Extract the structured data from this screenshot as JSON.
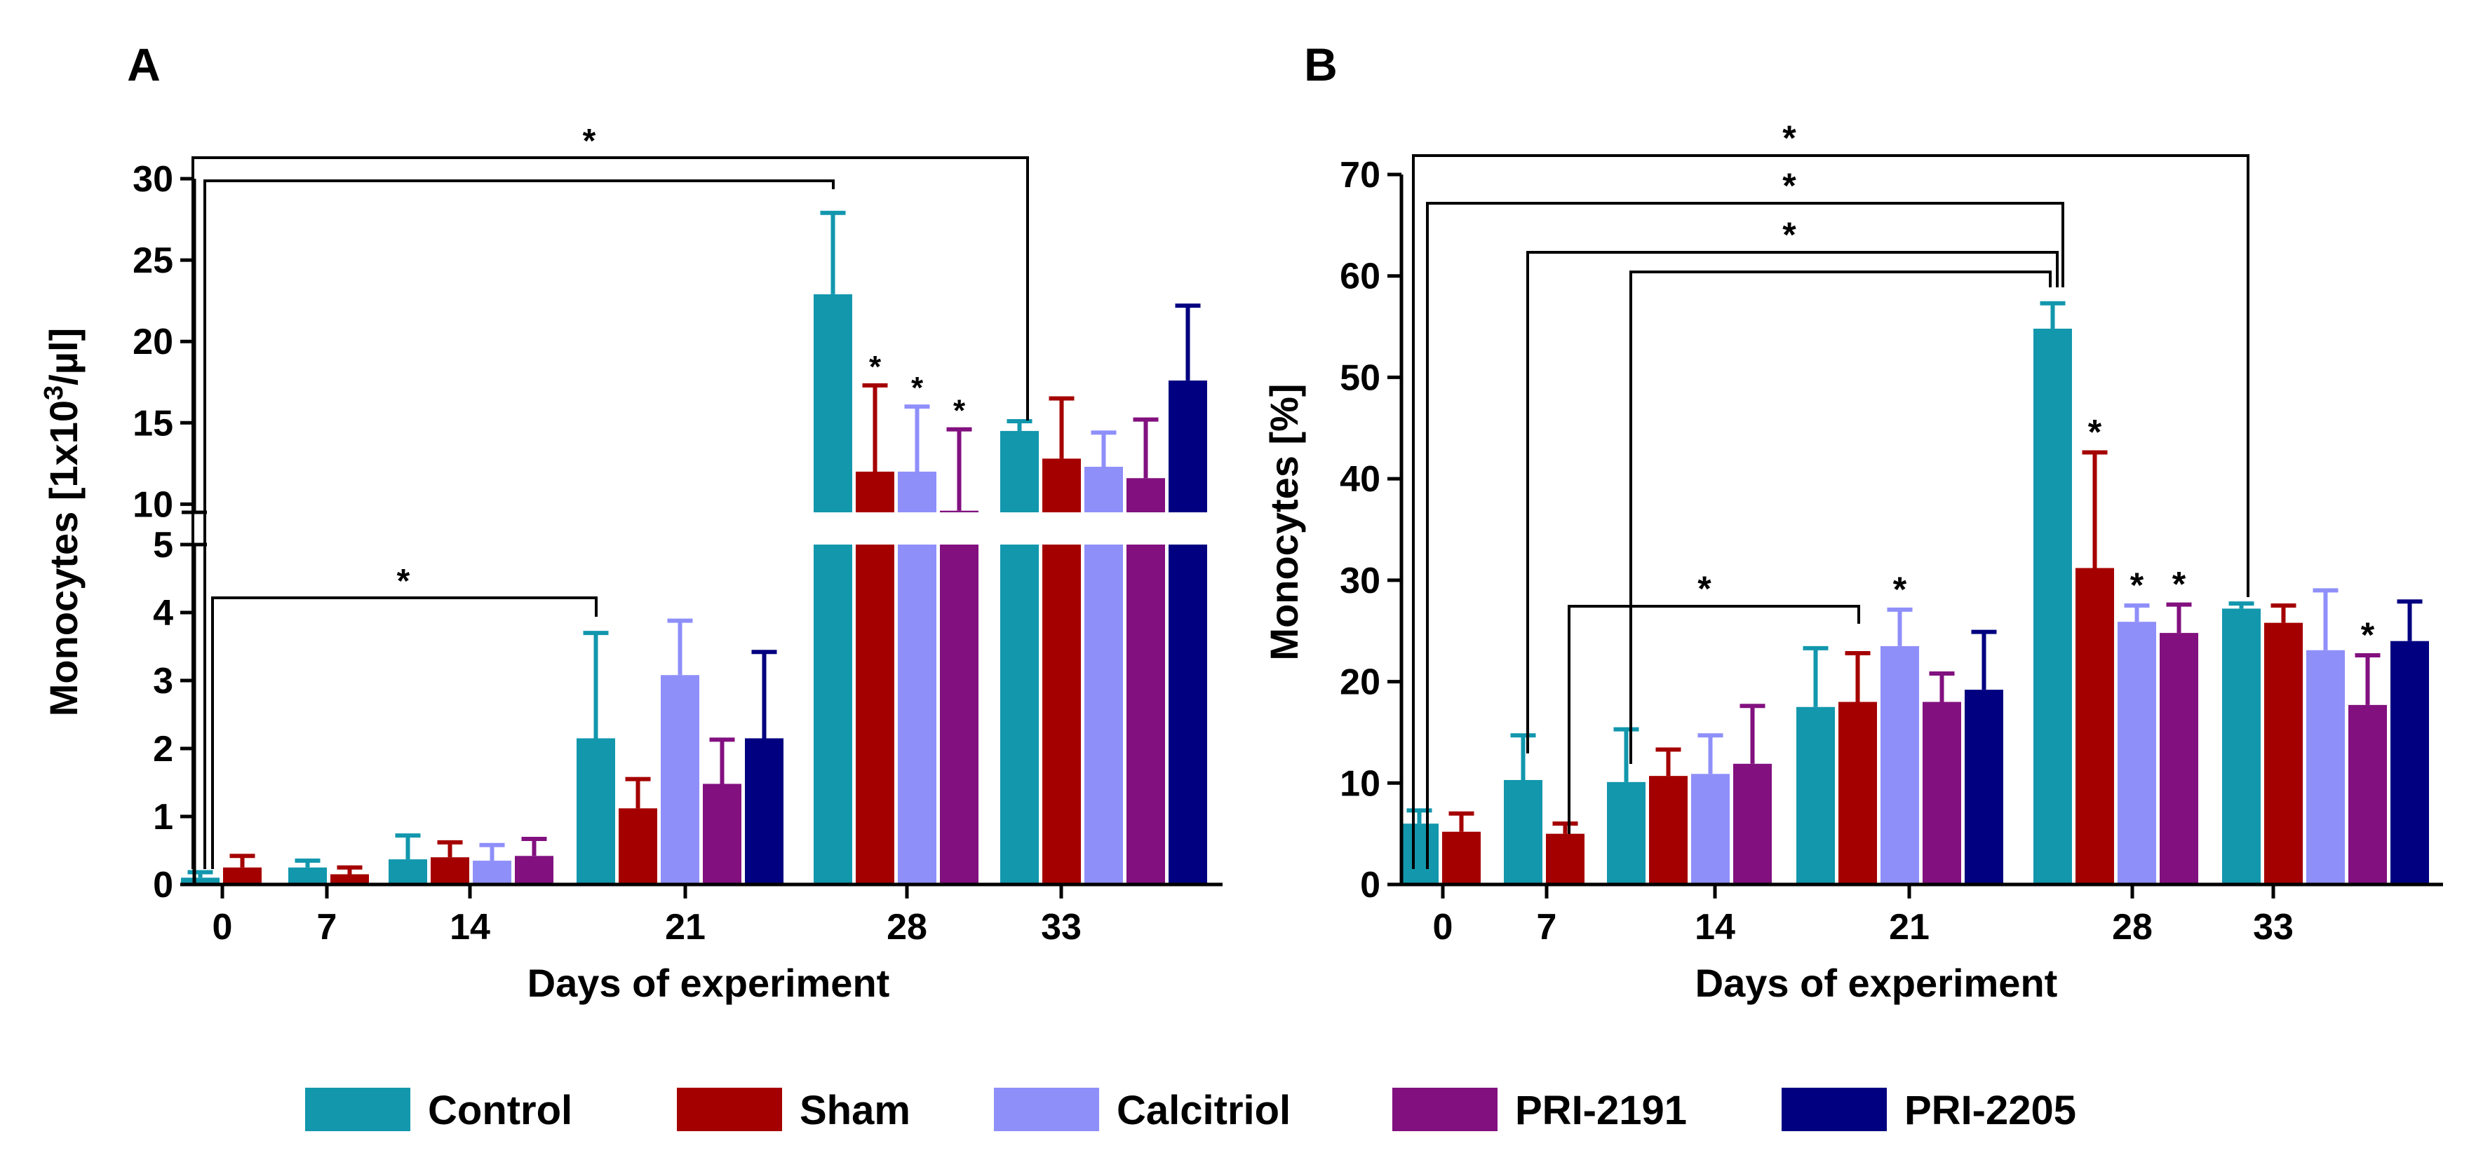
{
  "colors": {
    "Control": "#1297ad",
    "Sham": "#a50000",
    "Calcitriol": "#8f8ffa",
    "PRI-2191": "#82107f",
    "PRI-2205": "#010080"
  },
  "legend": {
    "entries": [
      "Control",
      "Sham",
      "Calcitriol",
      "PRI-2191",
      "PRI-2205"
    ]
  },
  "chart_data": [
    {
      "panel": "A",
      "type": "bar",
      "ylabel": "Monocytes [1x10³/µl]",
      "ylabel_parts": [
        "Monocytes [1x10",
        "3",
        "/µl]"
      ],
      "xlabel": "Days of experiment",
      "categories": [
        "0",
        "7",
        "14",
        "21",
        "28",
        "33"
      ],
      "series_names": [
        "Control",
        "Sham",
        "Calcitriol",
        "PRI-2191",
        "PRI-2205"
      ],
      "y_axis_break": {
        "lower_range": [
          0,
          5
        ],
        "upper_range": [
          9.5,
          30
        ]
      },
      "y_ticks_lower": [
        "0",
        "1",
        "2",
        "3",
        "4",
        "5"
      ],
      "y_ticks_upper": [
        "10",
        "15",
        "20",
        "25",
        "30"
      ],
      "groups": [
        {
          "day": "0",
          "values": [
            0.1,
            0.25
          ],
          "errors": [
            0.08,
            0.17
          ]
        },
        {
          "day": "7",
          "values": [
            0.25,
            0.15
          ],
          "errors": [
            0.1,
            0.1
          ]
        },
        {
          "day": "14",
          "values": [
            0.37,
            0.4,
            0.35,
            0.42
          ],
          "errors": [
            0.35,
            0.22,
            0.23,
            0.25
          ]
        },
        {
          "day": "21",
          "values": [
            2.15,
            1.12,
            3.08,
            1.48,
            2.15
          ],
          "errors": [
            1.55,
            0.43,
            0.8,
            0.65,
            1.27
          ]
        },
        {
          "day": "28",
          "values": [
            22.9,
            12.0,
            12.0,
            9.6
          ],
          "errors": [
            5.0,
            5.3,
            4.0,
            5.0
          ],
          "stars": [
            "",
            "*",
            "*",
            "*"
          ]
        },
        {
          "day": "33",
          "values": [
            14.5,
            12.8,
            12.3,
            11.6,
            17.6
          ],
          "errors": [
            0.6,
            3.7,
            2.1,
            3.6,
            4.6
          ]
        }
      ],
      "significance": [
        {
          "from": {
            "group": 0,
            "bar": 0
          },
          "to": {
            "group": 5,
            "bar": 0
          },
          "label": "*"
        },
        {
          "from": {
            "group": 0,
            "bar": 0
          },
          "to": {
            "group": 4,
            "bar": 0
          },
          "label": ""
        },
        {
          "from": {
            "group": 0,
            "bar": 0
          },
          "to": {
            "group": 3,
            "bar": 0
          },
          "label": "*"
        }
      ],
      "panel_label": "A"
    },
    {
      "panel": "B",
      "type": "bar",
      "ylabel": "Monocytes [%]",
      "xlabel": "Days of experiment",
      "categories": [
        "0",
        "7",
        "14",
        "21",
        "28",
        "33"
      ],
      "series_names": [
        "Control",
        "Sham",
        "Calcitriol",
        "PRI-2191",
        "PRI-2205"
      ],
      "ylim": [
        0,
        70
      ],
      "y_ticks": [
        "0",
        "10",
        "20",
        "30",
        "40",
        "50",
        "60",
        "70"
      ],
      "groups": [
        {
          "day": "0",
          "values": [
            6.0,
            5.2
          ],
          "errors": [
            1.3,
            1.8
          ]
        },
        {
          "day": "7",
          "values": [
            10.3,
            5.0
          ],
          "errors": [
            4.4,
            1.0
          ]
        },
        {
          "day": "14",
          "values": [
            10.1,
            10.7,
            10.9,
            11.9
          ],
          "errors": [
            5.2,
            2.6,
            3.8,
            5.7
          ]
        },
        {
          "day": "21",
          "values": [
            17.5,
            18.0,
            23.5,
            18.0,
            19.2
          ],
          "errors": [
            5.8,
            4.8,
            3.6,
            2.8,
            5.7
          ],
          "stars": [
            "",
            "",
            "*",
            "",
            ""
          ]
        },
        {
          "day": "28",
          "values": [
            54.8,
            31.2,
            25.9,
            24.8
          ],
          "errors": [
            2.5,
            11.4,
            1.6,
            2.8
          ],
          "stars": [
            "",
            "*",
            "*",
            "*"
          ]
        },
        {
          "day": "33",
          "values": [
            27.2,
            25.8,
            23.1,
            17.7,
            24.0
          ],
          "errors": [
            0.5,
            1.7,
            5.9,
            4.9,
            3.9
          ],
          "stars": [
            "",
            "",
            "",
            "*",
            ""
          ]
        }
      ],
      "significance": [
        {
          "from": {
            "group": 0,
            "bar": 0
          },
          "to": {
            "group": 5,
            "bar": 0
          },
          "label": "*"
        },
        {
          "from": {
            "group": 0,
            "bar": 0
          },
          "to": {
            "group": 4,
            "bar": 0
          },
          "label": "*"
        },
        {
          "from": {
            "group": 1,
            "bar": 0
          },
          "to": {
            "group": 4,
            "bar": 0
          },
          "label": "*"
        },
        {
          "from": {
            "group": 2,
            "bar": 0
          },
          "to": {
            "group": 4,
            "bar": 0
          },
          "label": ""
        },
        {
          "from": {
            "group": 1,
            "bar": 1
          },
          "to": {
            "group": 3,
            "bar": 1
          },
          "label": "*"
        }
      ],
      "panel_label": "B"
    }
  ]
}
